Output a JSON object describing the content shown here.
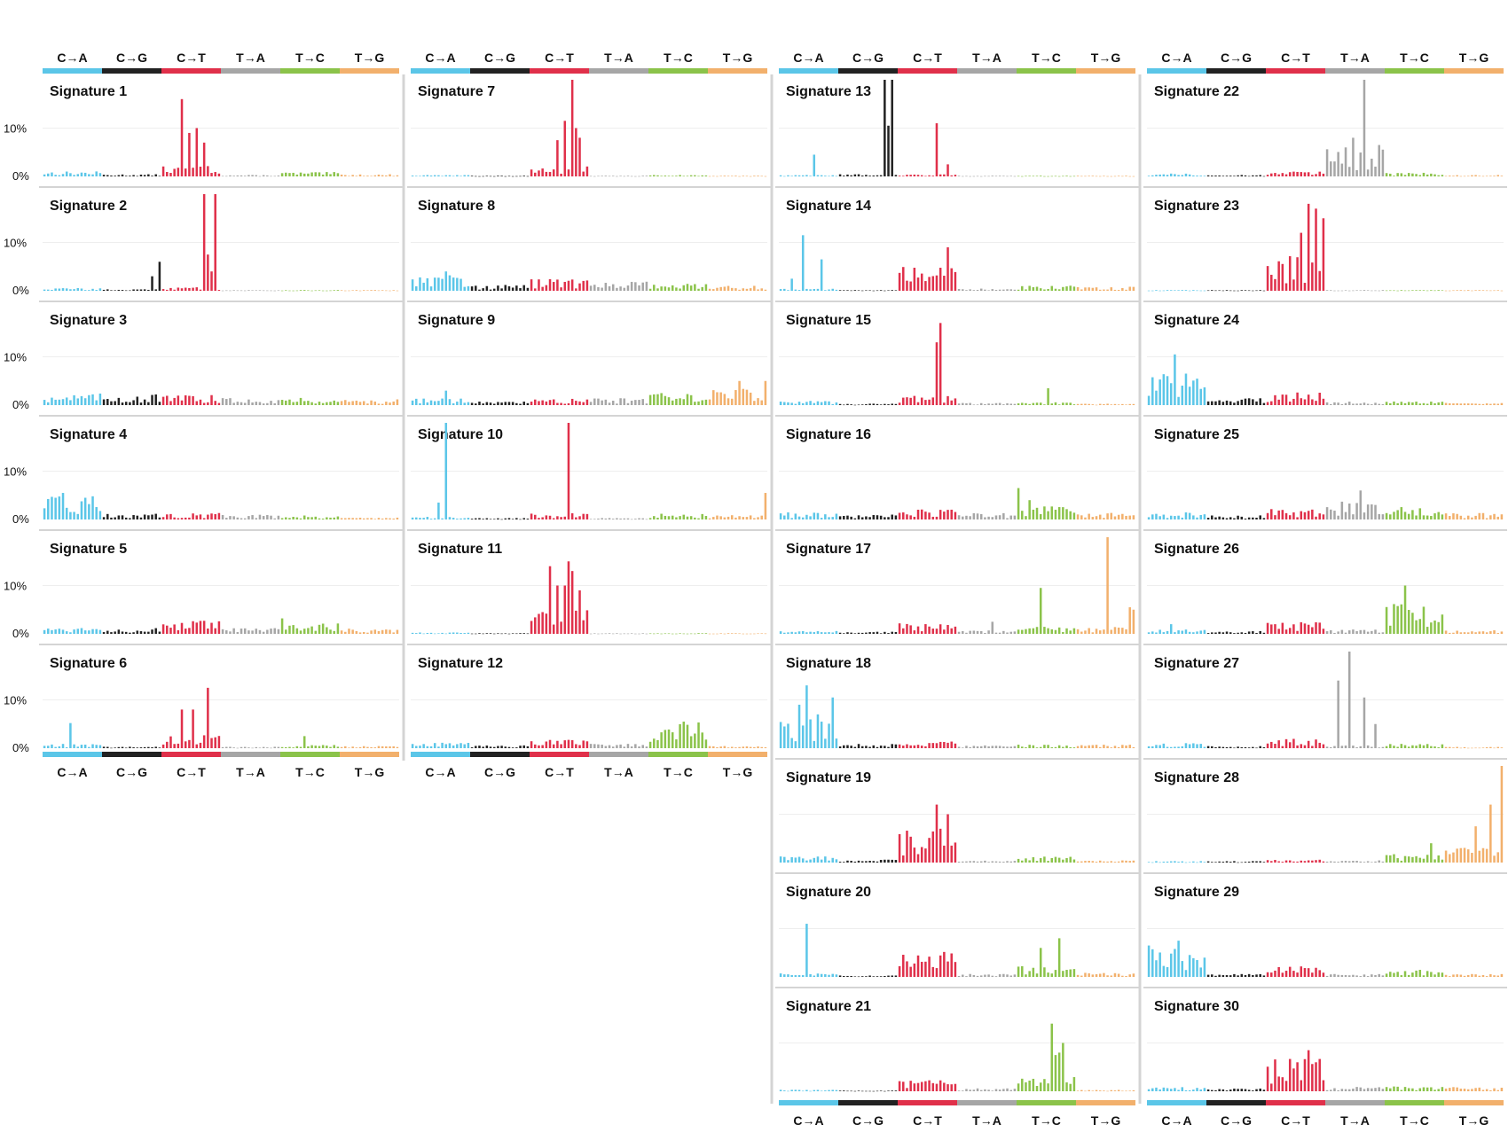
{
  "chart_data": {
    "type": "bar",
    "title": "",
    "mutation_classes": [
      {
        "label": "C→A",
        "color": "#5bc6e8"
      },
      {
        "label": "C→G",
        "color": "#222222"
      },
      {
        "label": "C→T",
        "color": "#e0304a"
      },
      {
        "label": "T→A",
        "color": "#a6a6a6"
      },
      {
        "label": "T→C",
        "color": "#8bc34a"
      },
      {
        "label": "T→G",
        "color": "#f2b06c"
      }
    ],
    "y_ticks": [
      "10%",
      "0%"
    ],
    "ylim": [
      0,
      20
    ],
    "bins_per_class": 16,
    "signatures": [
      {
        "name": "Signature 1",
        "peaks": [
          [
            2,
            21,
            16
          ],
          [
            2,
            23,
            9
          ],
          [
            2,
            25,
            10
          ],
          [
            2,
            27,
            7
          ]
        ],
        "base": [
          0.7,
          0.3,
          1.5,
          0.2,
          0.6,
          0.3
        ]
      },
      {
        "name": "Signature 2",
        "peaks": [
          [
            1,
            13,
            3
          ],
          [
            1,
            15,
            6
          ],
          [
            2,
            27,
            20
          ],
          [
            2,
            28,
            7.5
          ],
          [
            2,
            29,
            4
          ],
          [
            2,
            30,
            20
          ]
        ],
        "base": [
          0.4,
          0.2,
          0.5,
          0.1,
          0.1,
          0.1
        ]
      },
      {
        "name": "Signature 3",
        "peaks": [],
        "base": [
          1.6,
          1.5,
          1.4,
          1.0,
          1.0,
          0.8
        ]
      },
      {
        "name": "Signature 4",
        "peaks": [
          [
            0,
            5,
            5.5
          ],
          [
            0,
            13,
            4.8
          ]
        ],
        "base": [
          3.2,
          0.8,
          0.9,
          0.7,
          0.6,
          0.3
        ]
      },
      {
        "name": "Signature 5",
        "peaks": [
          [
            4,
            0,
            3.2
          ]
        ],
        "base": [
          1.0,
          0.8,
          1.8,
          0.8,
          1.5,
          0.8
        ]
      },
      {
        "name": "Signature 6",
        "peaks": [
          [
            0,
            7,
            5.2
          ],
          [
            2,
            21,
            8
          ],
          [
            2,
            24,
            8
          ],
          [
            2,
            28,
            12.5
          ],
          [
            4,
            6,
            2.5
          ]
        ],
        "base": [
          0.6,
          0.2,
          1.8,
          0.2,
          0.5,
          0.3
        ]
      },
      {
        "name": "Signature 7",
        "peaks": [
          [
            2,
            27,
            20
          ],
          [
            2,
            28,
            10
          ],
          [
            2,
            29,
            8
          ],
          [
            2,
            25,
            11.5
          ],
          [
            2,
            23,
            7.5
          ]
        ],
        "base": [
          0.2,
          0.1,
          1.5,
          0.1,
          0.2,
          0.1
        ]
      },
      {
        "name": "Signature 8",
        "peaks": [
          [
            0,
            9,
            4
          ]
        ],
        "base": [
          2.6,
          0.8,
          1.6,
          1.3,
          1.0,
          0.7
        ]
      },
      {
        "name": "Signature 9",
        "peaks": [
          [
            0,
            9,
            3
          ],
          [
            5,
            8,
            5
          ],
          [
            5,
            15,
            5
          ]
        ],
        "base": [
          1.0,
          0.5,
          0.9,
          1.0,
          2.1,
          2.4
        ]
      },
      {
        "name": "Signature 10",
        "peaks": [
          [
            0,
            9,
            20
          ],
          [
            0,
            7,
            3.5
          ],
          [
            2,
            26,
            20
          ],
          [
            5,
            15,
            5.5
          ]
        ],
        "base": [
          0.4,
          0.2,
          0.9,
          0.2,
          0.8,
          0.6
        ]
      },
      {
        "name": "Signature 11",
        "peaks": [
          [
            2,
            21,
            14
          ],
          [
            2,
            23,
            10
          ],
          [
            2,
            25,
            10
          ],
          [
            2,
            27,
            13
          ],
          [
            2,
            29,
            9
          ],
          [
            2,
            26,
            15
          ]
        ],
        "base": [
          0.2,
          0.1,
          4.0,
          0.1,
          0.1,
          0.1
        ]
      },
      {
        "name": "Signature 12",
        "peaks": [
          [
            4,
            9,
            5.5
          ]
        ],
        "base": [
          0.8,
          0.4,
          1.2,
          0.6,
          3.8,
          0.3
        ]
      },
      {
        "name": "Signature 13",
        "peaks": [
          [
            1,
            12,
            20
          ],
          [
            1,
            13,
            10.5
          ],
          [
            1,
            14,
            20
          ],
          [
            0,
            9,
            4.5
          ],
          [
            2,
            26,
            11
          ],
          [
            2,
            29,
            2.5
          ]
        ],
        "base": [
          0.2,
          0.3,
          0.3,
          0.1,
          0.1,
          0.1
        ]
      },
      {
        "name": "Signature 14",
        "peaks": [
          [
            0,
            6,
            11.5
          ],
          [
            0,
            3,
            2.5
          ],
          [
            0,
            11,
            6.5
          ],
          [
            2,
            29,
            9
          ]
        ],
        "base": [
          0.3,
          0.1,
          3.5,
          0.3,
          0.7,
          0.6
        ]
      },
      {
        "name": "Signature 15",
        "peaks": [
          [
            2,
            27,
            17
          ],
          [
            2,
            26,
            13
          ],
          [
            4,
            8,
            3.5
          ]
        ],
        "base": [
          0.6,
          0.2,
          1.3,
          0.3,
          0.4,
          0.2
        ]
      },
      {
        "name": "Signature 16",
        "peaks": [
          [
            4,
            0,
            6.5
          ],
          [
            4,
            3,
            4
          ]
        ],
        "base": [
          1.0,
          0.7,
          1.5,
          0.9,
          1.8,
          1.0
        ]
      },
      {
        "name": "Signature 17",
        "peaks": [
          [
            5,
            8,
            20
          ],
          [
            4,
            6,
            9.5
          ],
          [
            5,
            14,
            5.5
          ],
          [
            5,
            15,
            5
          ],
          [
            3,
            9,
            2.5
          ]
        ],
        "base": [
          0.4,
          0.3,
          1.5,
          0.5,
          1.0,
          1.0
        ]
      },
      {
        "name": "Signature 18",
        "peaks": [
          [
            0,
            7,
            13
          ],
          [
            0,
            5,
            9
          ],
          [
            0,
            10,
            7
          ],
          [
            0,
            14,
            10.5
          ],
          [
            0,
            1,
            4.5
          ]
        ],
        "base": [
          4.0,
          0.6,
          1.0,
          0.4,
          0.5,
          0.5
        ]
      },
      {
        "name": "Signature 19",
        "peaks": [
          [
            2,
            26,
            12
          ],
          [
            2,
            27,
            7
          ],
          [
            2,
            29,
            10
          ]
        ],
        "base": [
          0.9,
          0.4,
          4.5,
          0.3,
          0.9,
          0.3
        ]
      },
      {
        "name": "Signature 20",
        "peaks": [
          [
            0,
            7,
            11
          ],
          [
            4,
            11,
            8
          ],
          [
            4,
            6,
            6
          ]
        ],
        "base": [
          0.5,
          0.2,
          3.5,
          0.4,
          1.5,
          0.6
        ]
      },
      {
        "name": "Signature 21",
        "peaks": [
          [
            4,
            9,
            14
          ],
          [
            4,
            12,
            10
          ],
          [
            4,
            10,
            7.5
          ],
          [
            4,
            11,
            8
          ]
        ],
        "base": [
          0.2,
          0.1,
          1.8,
          0.4,
          2.0,
          0.2
        ]
      },
      {
        "name": "Signature 22",
        "peaks": [
          [
            3,
            10,
            20
          ],
          [
            3,
            5,
            6
          ],
          [
            3,
            7,
            8
          ],
          [
            3,
            14,
            6.5
          ]
        ],
        "base": [
          0.4,
          0.2,
          0.7,
          4.0,
          0.5,
          0.2
        ]
      },
      {
        "name": "Signature 23",
        "peaks": [
          [
            2,
            27,
            18
          ],
          [
            2,
            29,
            17
          ],
          [
            2,
            31,
            15
          ],
          [
            2,
            25,
            12
          ]
        ],
        "base": [
          0.1,
          0.1,
          5.0,
          0.1,
          0.1,
          0.1
        ]
      },
      {
        "name": "Signature 24",
        "peaks": [
          [
            0,
            7,
            10.5
          ],
          [
            0,
            5,
            6
          ]
        ],
        "base": [
          4.5,
          1.0,
          1.8,
          0.5,
          0.5,
          0.3
        ]
      },
      {
        "name": "Signature 25",
        "peaks": [
          [
            3,
            9,
            6
          ]
        ],
        "base": [
          1.0,
          0.6,
          1.5,
          2.5,
          1.8,
          0.9
        ]
      },
      {
        "name": "Signature 26",
        "peaks": [
          [
            4,
            5,
            10
          ],
          [
            0,
            6,
            2
          ]
        ],
        "base": [
          0.6,
          0.4,
          1.6,
          0.6,
          4.2,
          0.5
        ]
      },
      {
        "name": "Signature 27",
        "peaks": [
          [
            3,
            6,
            20
          ],
          [
            3,
            3,
            14
          ],
          [
            3,
            10,
            10.5
          ],
          [
            3,
            13,
            5
          ]
        ],
        "base": [
          0.7,
          0.3,
          1.3,
          0.4,
          0.6,
          0.2
        ]
      },
      {
        "name": "Signature 28",
        "peaks": [
          [
            5,
            15,
            20
          ],
          [
            5,
            12,
            12
          ],
          [
            5,
            8,
            7.5
          ],
          [
            4,
            12,
            4
          ]
        ],
        "base": [
          0.2,
          0.2,
          0.4,
          0.3,
          1.2,
          2.2
        ]
      },
      {
        "name": "Signature 29",
        "peaks": [
          [
            0,
            8,
            7.5
          ],
          [
            0,
            0,
            6.5
          ]
        ],
        "base": [
          4.5,
          0.4,
          1.6,
          0.4,
          1.0,
          0.4
        ]
      },
      {
        "name": "Signature 30",
        "peaks": [
          [
            2,
            27,
            8.5
          ],
          [
            2,
            24,
            6
          ],
          [
            2,
            29,
            6
          ]
        ],
        "base": [
          0.6,
          0.4,
          4.5,
          0.6,
          0.7,
          0.6
        ]
      }
    ]
  }
}
